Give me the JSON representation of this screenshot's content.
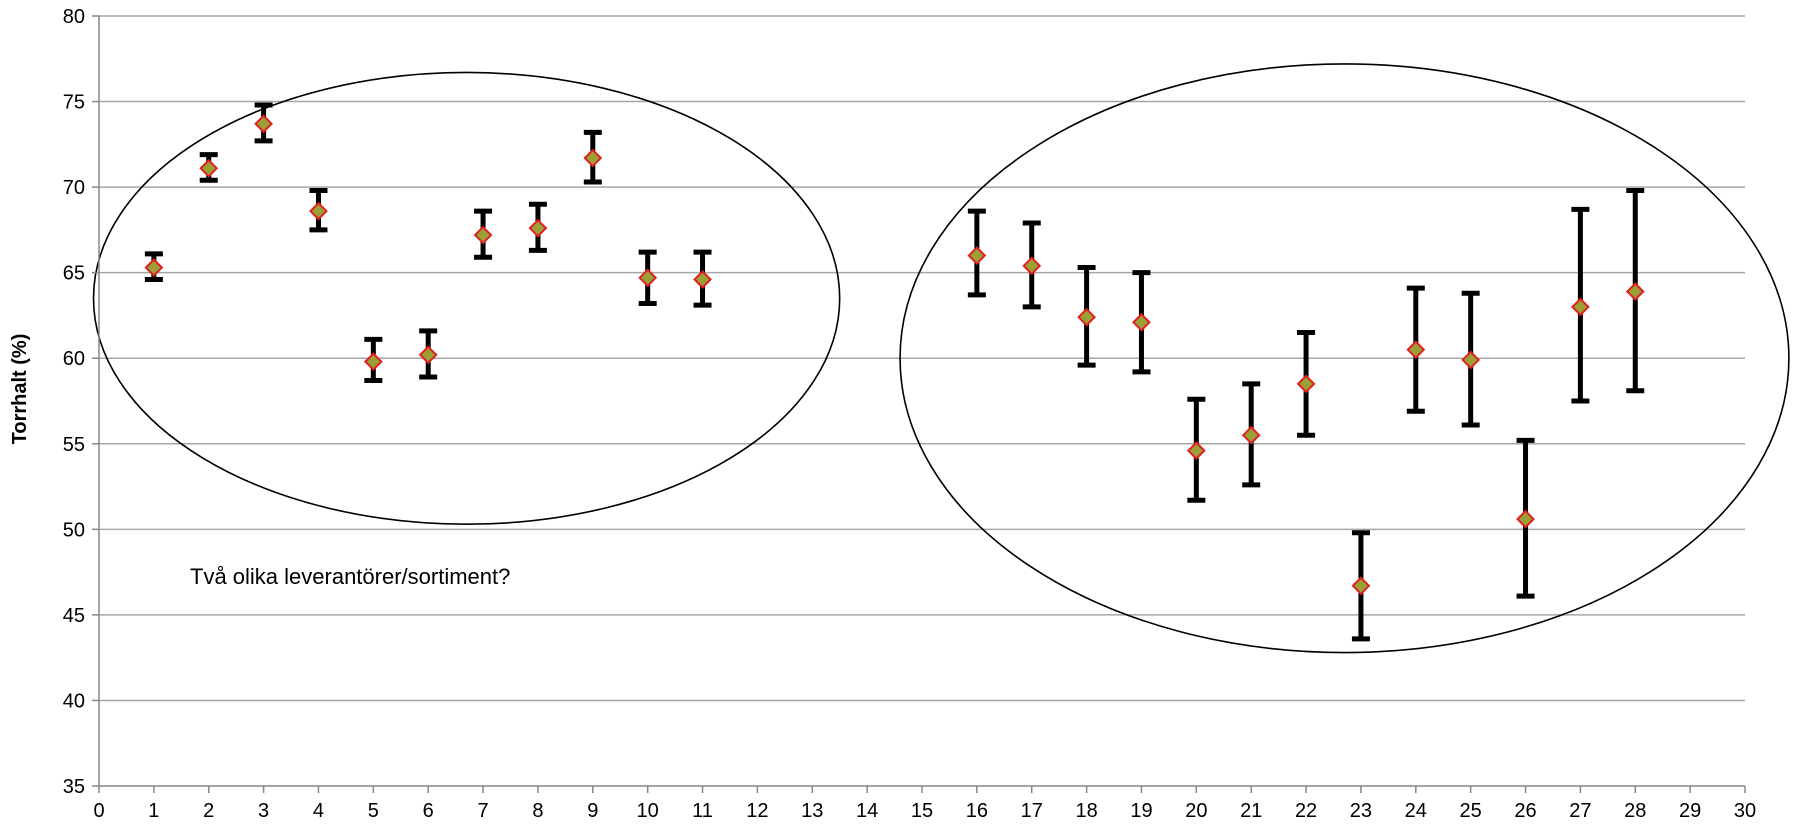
{
  "chart_data": {
    "type": "scatter",
    "title": "",
    "xlabel": "",
    "ylabel": "Torrhalt (%)",
    "xlim": [
      0,
      30
    ],
    "ylim": [
      35,
      80
    ],
    "x_ticks": [
      0,
      1,
      2,
      3,
      4,
      5,
      6,
      7,
      8,
      9,
      10,
      11,
      12,
      13,
      14,
      15,
      16,
      17,
      18,
      19,
      20,
      21,
      22,
      23,
      24,
      25,
      26,
      27,
      28,
      29,
      30
    ],
    "y_ticks": [
      35,
      40,
      45,
      50,
      55,
      60,
      65,
      70,
      75,
      80
    ],
    "grid": "horizontal",
    "marker": "diamond",
    "colors": {
      "marker_fill": "#9aa036",
      "marker_edge": "#e02020",
      "error_bar": "#000000",
      "grid": "#a6a6a6"
    },
    "points": [
      {
        "x": 1,
        "y": 65.3,
        "low": 64.6,
        "high": 66.1
      },
      {
        "x": 2,
        "y": 71.1,
        "low": 70.4,
        "high": 71.9
      },
      {
        "x": 3,
        "y": 73.7,
        "low": 72.7,
        "high": 74.8
      },
      {
        "x": 4,
        "y": 68.6,
        "low": 67.5,
        "high": 69.8
      },
      {
        "x": 5,
        "y": 59.8,
        "low": 58.7,
        "high": 61.1
      },
      {
        "x": 6,
        "y": 60.2,
        "low": 58.9,
        "high": 61.6
      },
      {
        "x": 7,
        "y": 67.2,
        "low": 65.9,
        "high": 68.6
      },
      {
        "x": 8,
        "y": 67.6,
        "low": 66.3,
        "high": 69.0
      },
      {
        "x": 9,
        "y": 71.7,
        "low": 70.3,
        "high": 73.2
      },
      {
        "x": 10,
        "y": 64.7,
        "low": 63.2,
        "high": 66.2
      },
      {
        "x": 11,
        "y": 64.6,
        "low": 63.1,
        "high": 66.2
      },
      {
        "x": 16,
        "y": 66.0,
        "low": 63.7,
        "high": 68.6
      },
      {
        "x": 17,
        "y": 65.4,
        "low": 63.0,
        "high": 67.9
      },
      {
        "x": 18,
        "y": 62.4,
        "low": 59.6,
        "high": 65.3
      },
      {
        "x": 19,
        "y": 62.1,
        "low": 59.2,
        "high": 65.0
      },
      {
        "x": 20,
        "y": 54.6,
        "low": 51.7,
        "high": 57.6
      },
      {
        "x": 21,
        "y": 55.5,
        "low": 52.6,
        "high": 58.5
      },
      {
        "x": 22,
        "y": 58.5,
        "low": 55.5,
        "high": 61.5
      },
      {
        "x": 23,
        "y": 46.7,
        "low": 43.6,
        "high": 49.8
      },
      {
        "x": 24,
        "y": 60.5,
        "low": 56.9,
        "high": 64.1
      },
      {
        "x": 25,
        "y": 59.9,
        "low": 56.1,
        "high": 63.8
      },
      {
        "x": 26,
        "y": 50.6,
        "low": 46.1,
        "high": 55.2
      },
      {
        "x": 27,
        "y": 63.0,
        "low": 57.5,
        "high": 68.7
      },
      {
        "x": 28,
        "y": 63.9,
        "low": 58.1,
        "high": 69.8
      }
    ],
    "annotations": [
      {
        "text": "Två olika leverantörer/sortiment?"
      }
    ],
    "groups": [
      {
        "cx": 6.7,
        "cy": 63.5,
        "rx": 6.8,
        "ry": 13.2
      },
      {
        "cx": 22.7,
        "cy": 60.0,
        "rx": 8.1,
        "ry": 17.2
      }
    ]
  }
}
